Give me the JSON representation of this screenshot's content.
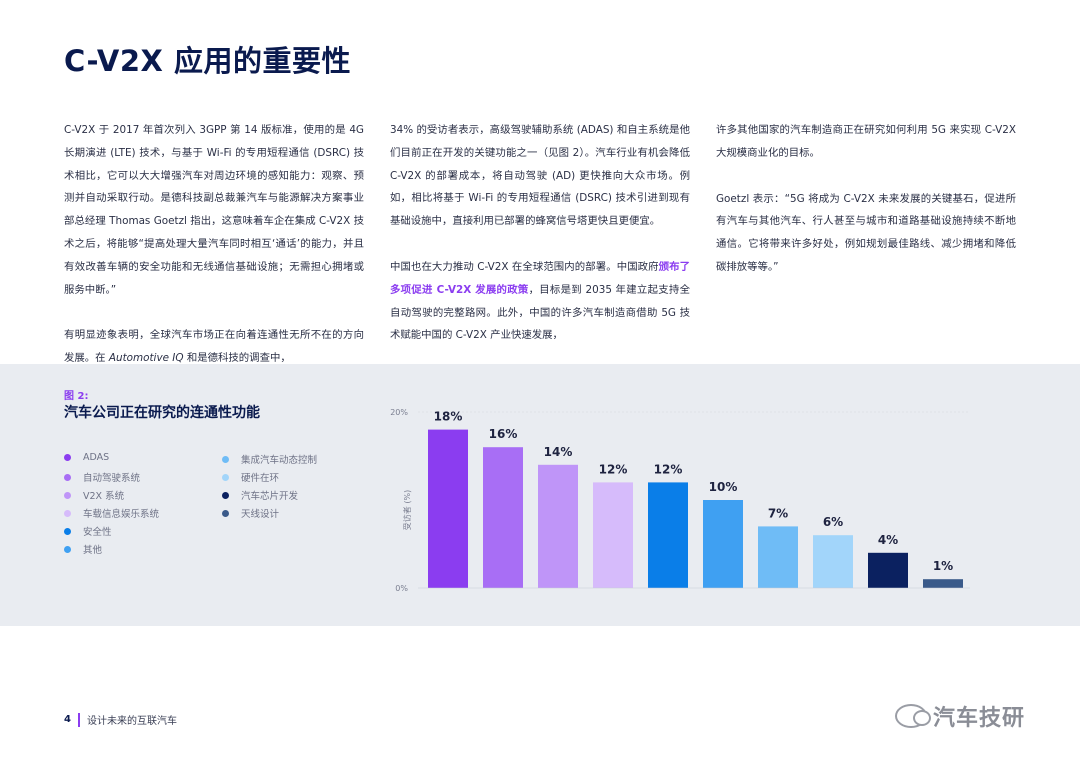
{
  "page": {
    "title": "C-V2X 应用的重要性",
    "col1": {
      "p1": "C-V2X 于 2017 年首次列入 3GPP 第 14 版标准，使用的是 4G 长期演进 (LTE) 技术，与基于 Wi-Fi 的专用短程通信 (DSRC) 技术相比，它可以大大增强汽车对周边环境的感知能力：观察、预测并自动采取行动。是德科技副总裁兼汽车与能源解决方案事业部总经理 Thomas Goetzl 指出，这意味着车企在集成 C-V2X 技术之后，将能够“提高处理大量汽车同时相互‘通话’的能力，并且有效改善车辆的安全功能和无线通信基础设施；无需担心拥堵或服务中断。”",
      "p2_a": "有明显迹象表明，全球汽车市场正在向着连通性无所不在的方向发展。在 ",
      "p2_italic": "Automotive IQ",
      "p2_b": " 和是德科技的调查中，"
    },
    "col2": {
      "p1": "34% 的受访者表示，高级驾驶辅助系统 (ADAS) 和自主系统是他们目前正在开发的关键功能之一（见图 2）。汽车行业有机会降低 C-V2X 的部署成本，将自动驾驶 (AD) 更快推向大众市场。例如，相比将基于 Wi-Fi 的专用短程通信 (DSRC) 技术引进到现有基础设施中，直接利用已部署的蜂窝信号塔更快且更便宜。",
      "p2_a": "中国也在大力推动 C-V2X 在全球范围内的部署。中国政府",
      "p2_hl": "颁布了多项促进 C-V2X 发展的政策",
      "p2_b": "，目标是到 2035 年建立起支持全自动驾驶的完整路网。此外，中国的许多汽车制造商借助 5G 技术赋能中国的 C-V2X 产业快速发展，"
    },
    "col3": {
      "p1": "许多其他国家的汽车制造商正在研究如何利用 5G 来实现 C-V2X 大规模商业化的目标。",
      "p2": "Goetzl 表示：“5G 将成为 C-V2X 未来发展的关键基石，促进所有汽车与其他汽车、行人甚至与城市和道路基础设施持续不断地通信。它将带来许多好处，例如规划最佳路线、减少拥堵和降低碳排放等等。”"
    },
    "figure": {
      "label": "图 2:",
      "title": "汽车公司正在研究的连通性功能"
    },
    "footer": {
      "page_number": "4",
      "doc_title": "设计未来的互联汽车"
    },
    "watermark": "汽车技研"
  },
  "chart_data": {
    "type": "bar",
    "categories": [
      "ADAS",
      "自动驾驶系统",
      "V2X 系统",
      "车载信息娱乐系统",
      "安全性",
      "其他",
      "集成汽车动态控制",
      "硬件在环",
      "汽车芯片开发",
      "天线设计"
    ],
    "values": [
      18,
      16,
      14,
      12,
      12,
      10,
      7,
      6,
      4,
      1
    ],
    "value_labels": [
      "18%",
      "16%",
      "14%",
      "12%",
      "12%",
      "10%",
      "7%",
      "6%",
      "4%",
      "1%"
    ],
    "colors": [
      "#8b3df0",
      "#a86ef5",
      "#bf95f8",
      "#d6bbfb",
      "#0a7ee8",
      "#3fa0f2",
      "#6fbcf6",
      "#a2d5fa",
      "#0b2160",
      "#3a5a8a"
    ],
    "ylabel": "受访者 (%)",
    "ylim": [
      0,
      20
    ],
    "yticks": [
      "0%",
      "20%"
    ],
    "legend_position": "left"
  }
}
